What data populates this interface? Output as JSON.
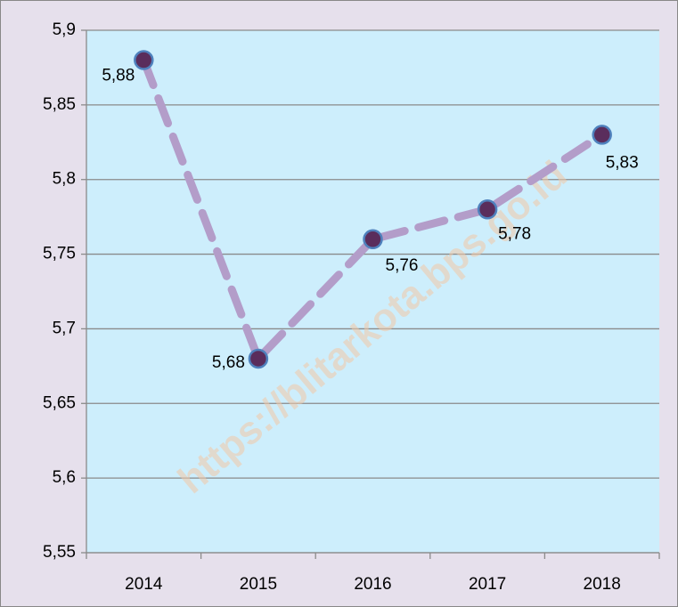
{
  "chart_data": {
    "type": "line",
    "categories": [
      "2014",
      "2015",
      "2016",
      "2017",
      "2018"
    ],
    "series": [
      {
        "name": "",
        "color": "#b39dc9",
        "values": [
          5.88,
          5.68,
          5.76,
          5.78,
          5.83
        ],
        "value_labels": [
          "5,88",
          "5,68",
          "5,76",
          "5,78",
          "5,83"
        ]
      }
    ],
    "ylim": [
      5.55,
      5.9
    ],
    "yticks": [
      {
        "value": 5.55,
        "label": "5,55"
      },
      {
        "value": 5.6,
        "label": "5,6"
      },
      {
        "value": 5.65,
        "label": "5,65"
      },
      {
        "value": 5.7,
        "label": "5,7"
      },
      {
        "value": 5.75,
        "label": "5,75"
      },
      {
        "value": 5.8,
        "label": "5,8"
      },
      {
        "value": 5.85,
        "label": "5,85"
      },
      {
        "value": 5.9,
        "label": "5,9"
      }
    ],
    "grid": true,
    "watermark": "https://blitarkota.bps.go.id"
  }
}
